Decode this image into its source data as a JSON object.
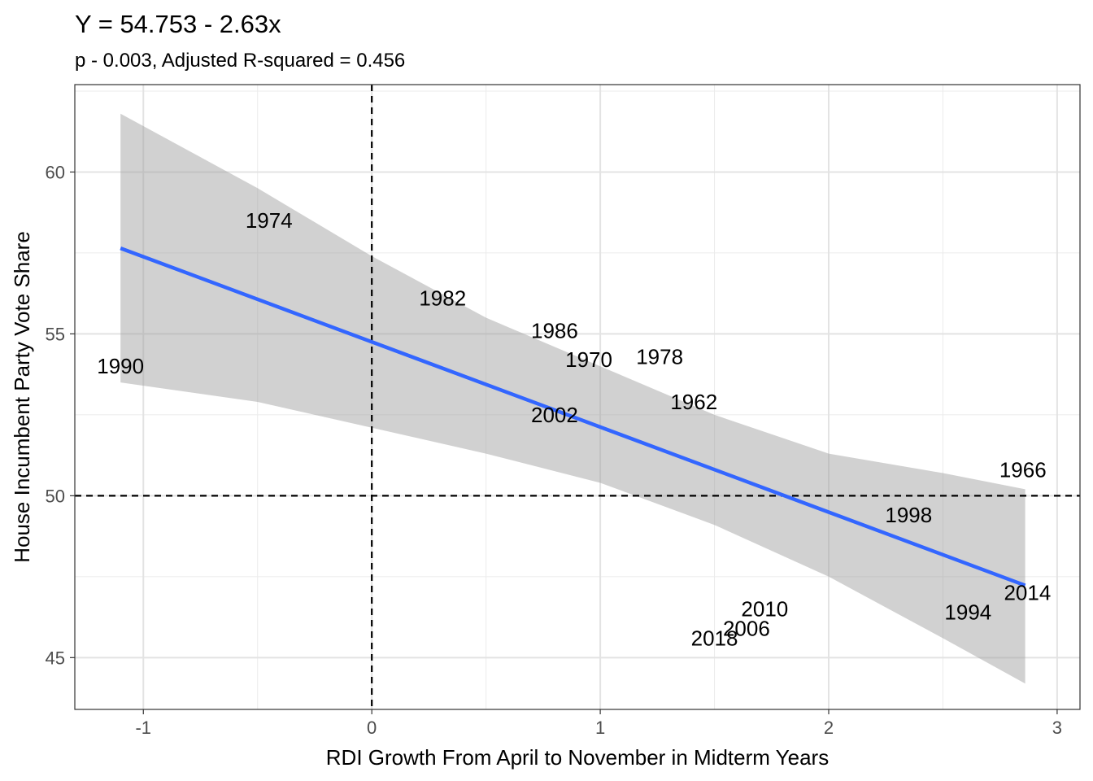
{
  "chart_data": {
    "type": "scatter",
    "title": "Y = 54.753 - 2.63x",
    "subtitle": "p - 0.003, Adjusted R-squared = 0.456",
    "xlabel": "RDI Growth From April to November in Midterm Years",
    "ylabel": "House Incumbent Party Vote Share",
    "xlim": [
      -1.3,
      3.1
    ],
    "ylim": [
      43.4,
      62.7
    ],
    "x_ticks": [
      -1,
      0,
      1,
      2,
      3
    ],
    "x_tick_labels": [
      "-1",
      "0",
      "1",
      "2",
      "3"
    ],
    "y_ticks": [
      45,
      50,
      55,
      60
    ],
    "y_tick_labels": [
      "45",
      "50",
      "55",
      "60"
    ],
    "grid": true,
    "theme": "bw",
    "reference_lines": [
      {
        "orientation": "vertical",
        "value": 0,
        "style": "dashed"
      },
      {
        "orientation": "horizontal",
        "value": 50,
        "style": "dashed"
      }
    ],
    "points": [
      {
        "label": "1990",
        "x": -1.1,
        "y": 54.0
      },
      {
        "label": "1974",
        "x": -0.45,
        "y": 58.5
      },
      {
        "label": "1982",
        "x": 0.31,
        "y": 56.1
      },
      {
        "label": "1986",
        "x": 0.8,
        "y": 55.1
      },
      {
        "label": "1970",
        "x": 0.95,
        "y": 54.2
      },
      {
        "label": "1978",
        "x": 1.26,
        "y": 54.3
      },
      {
        "label": "1962",
        "x": 1.41,
        "y": 52.9
      },
      {
        "label": "2002",
        "x": 0.8,
        "y": 52.5
      },
      {
        "label": "1966",
        "x": 2.85,
        "y": 50.8
      },
      {
        "label": "1998",
        "x": 2.35,
        "y": 49.4
      },
      {
        "label": "2014",
        "x": 2.87,
        "y": 47.0
      },
      {
        "label": "1994",
        "x": 2.61,
        "y": 46.4
      },
      {
        "label": "2010",
        "x": 1.72,
        "y": 46.5
      },
      {
        "label": "2006",
        "x": 1.64,
        "y": 45.9
      },
      {
        "label": "2018",
        "x": 1.5,
        "y": 45.6
      }
    ],
    "fit": {
      "intercept": 54.753,
      "slope": -2.63,
      "x_range": [
        -1.1,
        2.86
      ],
      "line_color": "#3366FF",
      "band_color": "#999999",
      "band": {
        "x": [
          -1.1,
          -0.5,
          0.0,
          0.5,
          1.0,
          1.5,
          2.0,
          2.5,
          2.86
        ],
        "lower": [
          53.5,
          52.9,
          52.1,
          51.3,
          50.4,
          49.1,
          47.5,
          45.6,
          44.2
        ],
        "upper": [
          61.8,
          59.5,
          57.4,
          55.5,
          54.0,
          52.5,
          51.3,
          50.7,
          50.2
        ]
      }
    }
  }
}
